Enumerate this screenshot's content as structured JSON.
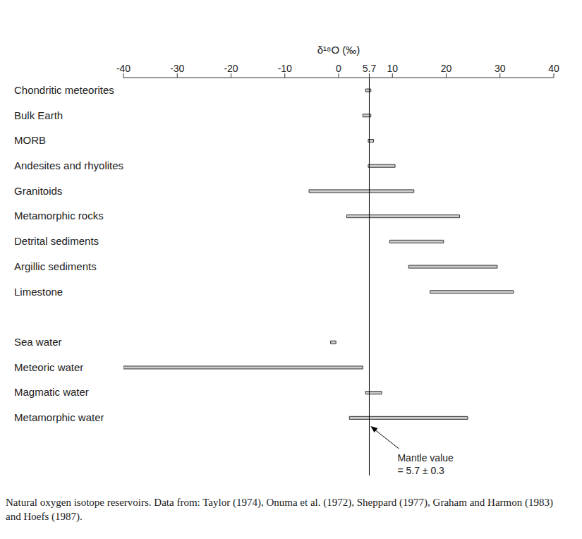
{
  "chart_data": {
    "type": "bar",
    "orientation": "horizontal",
    "xlabel": "δ¹⁸O (‰)",
    "categories": [
      "Chondritic meteorites",
      "Bulk Earth",
      "MORB",
      "Andesites and rhyolites",
      "Granitoids",
      "Metamorphic rocks",
      "Detrital sediments",
      "Argillic sediments",
      "Limestone",
      null,
      "Sea water",
      "Meteoric water",
      "Magmatic water",
      "Metamorphic water"
    ],
    "values": [
      [
        5,
        6
      ],
      [
        4.5,
        6
      ],
      [
        5.5,
        6.5
      ],
      [
        5.5,
        10.5
      ],
      [
        -5.5,
        14
      ],
      [
        1.5,
        22.5
      ],
      [
        9.5,
        19.5
      ],
      [
        13,
        29.5
      ],
      [
        17,
        32.5
      ],
      null,
      [
        -1.5,
        -0.5
      ],
      [
        -40,
        4.5
      ],
      [
        5,
        8
      ],
      [
        2,
        24
      ]
    ],
    "color": "#cccccc",
    "xlim": [
      -40,
      40
    ],
    "xticks": [
      -40,
      -30,
      -20,
      -10,
      0,
      5.7,
      10,
      20,
      30,
      40
    ],
    "grid": false,
    "reference_line": {
      "x": 5.7,
      "label": [
        "Mantle value",
        "= 5.7 ± 0.3"
      ]
    },
    "caption": "Natural oxygen isotope reservoirs. Data from: Taylor (1974), Onuma et al. (1972), Sheppard (1977), Graham and Harmon (1983) and Hoefs (1987)."
  }
}
